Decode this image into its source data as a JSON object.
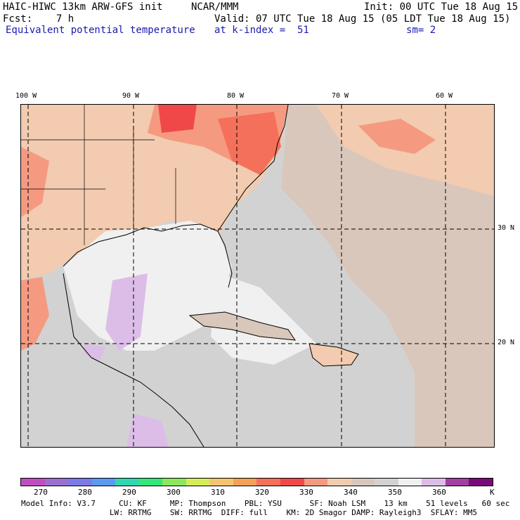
{
  "header": {
    "model": "HAIC-HIWC 13km ARW-GFS init",
    "org": "NCAR/MMM",
    "init": "Init: 00 UTC Tue 18 Aug 15",
    "fcst": "Fcst:    7 h",
    "valid": "Valid: 07 UTC Tue 18 Aug 15 (05 LDT Tue 18 Aug 15)",
    "field": "Equivalent potential temperature",
    "level": "at k-index =  51",
    "smooth": "sm= 2"
  },
  "map": {
    "lon_labels": [
      "100 W",
      "90 W",
      "80 W",
      "70 W",
      "60 W"
    ],
    "lat_labels": [
      "30 N",
      "20 N"
    ]
  },
  "colorbar": {
    "labels": [
      "270",
      "280",
      "290",
      "300",
      "310",
      "320",
      "330",
      "340",
      "350",
      "360",
      "K"
    ],
    "colors": [
      "#c14ec1",
      "#9a6fd0",
      "#7a7ae8",
      "#5a9af0",
      "#33d6b0",
      "#33e878",
      "#8ae85a",
      "#d6ec5a",
      "#f6c470",
      "#f6a05a",
      "#f5705a",
      "#f04848",
      "#f59a80",
      "#f2cbb0",
      "#d9c7bb",
      "#d2d2d2",
      "#f0f0f0",
      "#dcbde8",
      "#a23fa0",
      "#7a0a7a"
    ]
  },
  "footer": {
    "line1": "Model Info: V3.7     CU: KF     MP: Thompson    PBL: YSU      SF: Noah LSM    13 km    51 levels   60 sec",
    "line2": "                   LW: RRTMG    SW: RRTMG  DIFF: full    KM: 2D Smagor DAMP: Rayleigh3  SFLAY: MM5"
  }
}
